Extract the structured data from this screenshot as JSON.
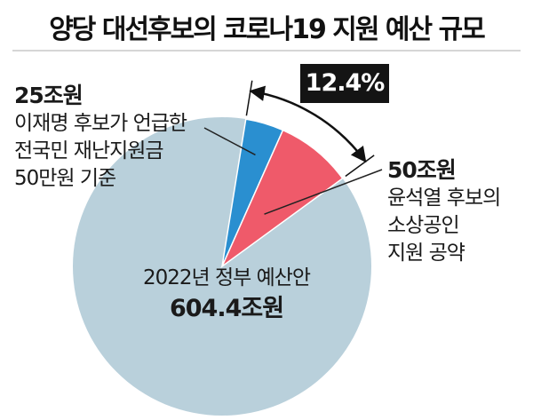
{
  "title": "양당 대선후보의 코로나19 지원 예산 규모",
  "chart_data": {
    "type": "pie",
    "total": 604.4,
    "unit": "조원",
    "center": {
      "caption": "2022년 정부 예산안",
      "value_label": "604.4조원"
    },
    "slices": [
      {
        "amount_label": "25조원",
        "value": 25,
        "description": [
          "이재명 후보가 언급한",
          "전국민 재난지원금",
          "50만원 기준"
        ],
        "color": "#2a8fd0"
      },
      {
        "amount_label": "50조원",
        "value": 50,
        "description": [
          "윤석열 후보의",
          "소상공인",
          "지원 공약"
        ],
        "color": "#ef5a6a"
      }
    ],
    "remainder_color": "#b9d0db",
    "combined_share_label": "12.4%"
  }
}
